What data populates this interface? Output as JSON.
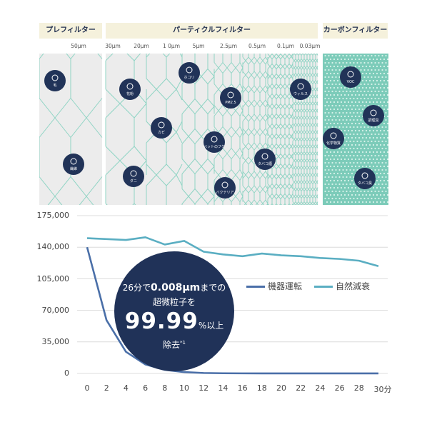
{
  "headers": {
    "pre": "プレフィルター",
    "particle": "パーティクルフィルター",
    "carbon": "カーボンフィルター"
  },
  "size_ticks": [
    "50μm",
    "30μm",
    "20μm",
    "1 0μm",
    "5μm",
    "2.5μm",
    "0.5μm",
    "0.1μm",
    "0.03μm"
  ],
  "particles": [
    {
      "name": "hair-particle-icon",
      "label": "毛"
    },
    {
      "name": "fiber-particle-icon",
      "label": "繊維"
    },
    {
      "name": "pollen-particle-icon",
      "label": "花粉"
    },
    {
      "name": "dust-particle-icon",
      "label": "ホコリ"
    },
    {
      "name": "mold-particle-icon",
      "label": "カビ"
    },
    {
      "name": "mite-particle-icon",
      "label": "ダニ"
    },
    {
      "name": "pm25-particle-icon",
      "label": "PM2.5"
    },
    {
      "name": "pet-dander-particle-icon",
      "label": "ペットのフケ"
    },
    {
      "name": "bacteria-particle-icon",
      "label": "バクテリア"
    },
    {
      "name": "virus-particle-icon",
      "label": "ウィルス"
    },
    {
      "name": "tobacco-smoke-particle-icon",
      "label": "タバコ煙"
    },
    {
      "name": "voc-gas-icon",
      "label": "VOC"
    },
    {
      "name": "cooking-odor-icon",
      "label": "調理臭"
    },
    {
      "name": "chemical-gas-icon",
      "label": "化学物質"
    },
    {
      "name": "tobacco-odor-icon",
      "label": "タバコ臭"
    }
  ],
  "bubble": {
    "line1_pre": "26分で",
    "line1_value": "0.008μm",
    "line1_post": "までの",
    "line2": "超微粒子を",
    "line3_value": "99.99",
    "line3_post": "%以上",
    "line4": "除去",
    "line4_note": "*1"
  },
  "colors": {
    "navy": "#203258",
    "device": "#4a6fa8",
    "natural": "#5aaec2",
    "mesh": "#8fd4c4",
    "carbon": "#3fa992"
  },
  "chart_data": {
    "type": "line",
    "x_tick_labels": [
      "0",
      "2",
      "4",
      "6",
      "8",
      "10",
      "12",
      "14",
      "16",
      "18",
      "20",
      "22",
      "24",
      "26",
      "28",
      "30分"
    ],
    "y_tick_labels": [
      "175,000",
      "140,000",
      "105,000",
      "70,000",
      "35,000",
      "0"
    ],
    "x": [
      0,
      2,
      4,
      6,
      8,
      10,
      12,
      14,
      16,
      18,
      20,
      22,
      24,
      26,
      28,
      30
    ],
    "ylim": [
      0,
      175000
    ],
    "xlim": [
      0,
      30
    ],
    "grid": "horizontal",
    "legend_position": "right",
    "series": [
      {
        "name": "機器運転",
        "color": "#4a6fa8",
        "values": [
          140000,
          59000,
          24000,
          10000,
          4000,
          1500,
          500,
          200,
          100,
          50,
          30,
          20,
          10,
          10,
          10,
          10
        ]
      },
      {
        "name": "自然減衰",
        "color": "#5aaec2",
        "values": [
          150000,
          149000,
          148000,
          151000,
          143000,
          147000,
          135000,
          132000,
          130000,
          133000,
          131000,
          130000,
          128000,
          127000,
          125000,
          119000
        ]
      }
    ]
  }
}
